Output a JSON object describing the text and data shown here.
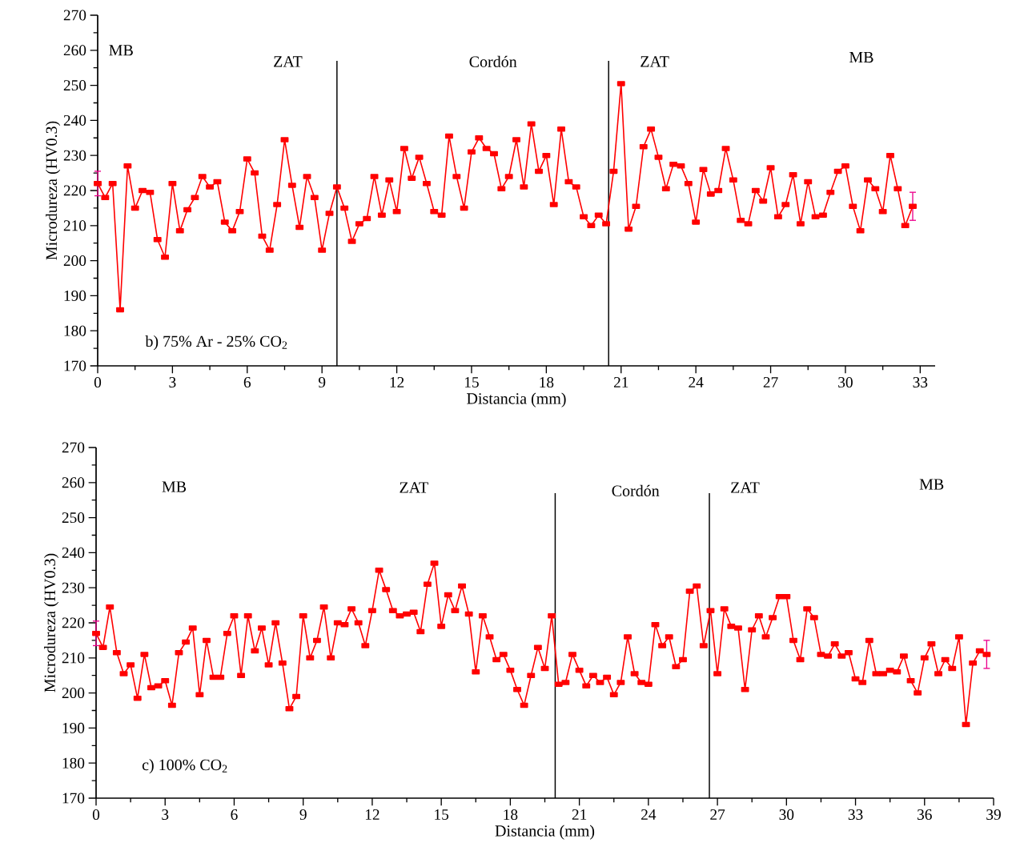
{
  "chart_data": [
    {
      "type": "line",
      "xlabel": "Distancia (mm)",
      "ylabel": "Microdureza (HV0.3)",
      "color": "#ff0000",
      "marker": "square",
      "line_style": "solid",
      "xlim": [
        0,
        33.6
      ],
      "ylim": [
        170,
        270
      ],
      "xticks": [
        0,
        3,
        6,
        9,
        12,
        15,
        18,
        21,
        24,
        27,
        30,
        33
      ],
      "yticks": [
        170,
        180,
        190,
        200,
        210,
        220,
        230,
        240,
        250,
        260,
        270
      ],
      "x": [
        0,
        0.3,
        0.6,
        0.9,
        1.2,
        1.5,
        1.8,
        2.1,
        2.4,
        2.7,
        3.0,
        3.3,
        3.6,
        3.9,
        4.2,
        4.5,
        4.8,
        5.1,
        5.4,
        5.7,
        6.0,
        6.3,
        6.6,
        6.9,
        7.2,
        7.5,
        7.8,
        8.1,
        8.4,
        8.7,
        9.0,
        9.3,
        9.6,
        9.9,
        10.2,
        10.5,
        10.8,
        11.1,
        11.4,
        11.7,
        12.0,
        12.3,
        12.6,
        12.9,
        13.2,
        13.5,
        13.8,
        14.1,
        14.4,
        14.7,
        15.0,
        15.3,
        15.6,
        15.9,
        16.2,
        16.5,
        16.8,
        17.1,
        17.4,
        17.7,
        18.0,
        18.3,
        18.6,
        18.9,
        19.2,
        19.5,
        19.8,
        20.1,
        20.4,
        20.7,
        21.0,
        21.3,
        21.6,
        21.9,
        22.2,
        22.5,
        22.8,
        23.1,
        23.4,
        23.7,
        24.0,
        24.3,
        24.6,
        24.9,
        25.2,
        25.5,
        25.8,
        26.1,
        26.4,
        26.7,
        27.0,
        27.3,
        27.6,
        27.9,
        28.2,
        28.5,
        28.8,
        29.1,
        29.4,
        29.7,
        30.0,
        30.3,
        30.6,
        30.9,
        31.2,
        31.5,
        31.8,
        32.1,
        32.4,
        32.7
      ],
      "values": [
        222,
        218,
        222,
        186,
        227,
        215,
        220,
        219.5,
        206,
        201,
        222,
        208.5,
        214.5,
        218,
        224,
        221,
        222.5,
        211,
        208.5,
        214,
        229,
        225,
        207,
        203,
        216,
        234.5,
        221.5,
        209.5,
        224,
        218,
        203,
        213.5,
        221,
        215,
        205.5,
        210.5,
        212,
        224,
        213,
        223,
        214,
        232,
        223.5,
        229.5,
        222,
        214,
        213,
        235.5,
        224,
        215,
        231,
        235,
        232,
        230.5,
        220.5,
        224,
        234.5,
        221,
        239,
        225.5,
        230,
        216,
        237.5,
        222.5,
        221,
        212.5,
        210,
        213,
        210.5,
        225.5,
        250.5,
        209,
        215.5,
        232.5,
        237.5,
        229.5,
        220.5,
        227.5,
        227,
        222,
        211,
        226,
        219,
        220,
        232,
        223,
        211.5,
        210.5,
        220,
        217,
        226.5,
        212.5,
        216,
        224.5,
        210.5,
        222.5,
        212.5,
        213,
        219.5,
        225.5,
        227,
        215.5,
        208.5,
        223,
        220.5,
        214,
        230,
        220.5,
        210,
        215.5
      ],
      "errors": [
        3.5,
        null,
        null,
        null,
        null,
        null,
        null,
        null,
        null,
        null,
        null,
        null,
        null,
        null,
        null,
        null,
        null,
        null,
        null,
        null,
        null,
        null,
        null,
        null,
        null,
        null,
        null,
        null,
        null,
        null,
        null,
        null,
        null,
        null,
        null,
        null,
        null,
        null,
        null,
        null,
        null,
        null,
        null,
        null,
        null,
        null,
        null,
        null,
        null,
        null,
        null,
        null,
        null,
        null,
        null,
        null,
        null,
        null,
        null,
        null,
        null,
        null,
        null,
        null,
        null,
        null,
        null,
        null,
        null,
        null,
        null,
        null,
        null,
        null,
        null,
        null,
        null,
        null,
        null,
        null,
        null,
        null,
        null,
        null,
        null,
        null,
        null,
        null,
        null,
        null,
        null,
        null,
        null,
        null,
        null,
        null,
        null,
        null,
        null,
        null,
        null,
        null,
        null,
        null,
        null,
        null,
        null,
        null,
        null,
        4
      ],
      "ref_lines": [
        {
          "axis": "x",
          "value": 9.6
        },
        {
          "axis": "x",
          "value": 20.5
        }
      ],
      "annotations": [
        "MB",
        "ZAT",
        "Cordón",
        "ZAT",
        "MB",
        "b) 75% Ar - 25% CO$_{2}$"
      ]
    },
    {
      "type": "line",
      "xlabel": "Distancia (mm)",
      "ylabel": "Microdureza (HV0.3)",
      "color": "#ff0000",
      "marker": "square",
      "line_style": "solid",
      "xlim": [
        0,
        39
      ],
      "ylim": [
        170,
        270
      ],
      "xticks": [
        0,
        3,
        6,
        9,
        12,
        15,
        18,
        21,
        24,
        27,
        30,
        33,
        36,
        39
      ],
      "yticks": [
        170,
        180,
        190,
        200,
        210,
        220,
        230,
        240,
        250,
        260,
        270
      ],
      "x": [
        0,
        0.3,
        0.6,
        0.9,
        1.2,
        1.5,
        1.8,
        2.1,
        2.4,
        2.7,
        3.0,
        3.3,
        3.6,
        3.9,
        4.2,
        4.5,
        4.8,
        5.1,
        5.4,
        5.7,
        6.0,
        6.3,
        6.6,
        6.9,
        7.2,
        7.5,
        7.8,
        8.1,
        8.4,
        8.7,
        9.0,
        9.3,
        9.6,
        9.9,
        10.2,
        10.5,
        10.8,
        11.1,
        11.4,
        11.7,
        12.0,
        12.3,
        12.6,
        12.9,
        13.2,
        13.5,
        13.8,
        14.1,
        14.4,
        14.7,
        15.0,
        15.3,
        15.6,
        15.9,
        16.2,
        16.5,
        16.8,
        17.1,
        17.4,
        17.7,
        18.0,
        18.3,
        18.6,
        18.9,
        19.2,
        19.5,
        19.8,
        20.1,
        20.4,
        20.7,
        21.0,
        21.3,
        21.6,
        21.9,
        22.2,
        22.5,
        22.8,
        23.1,
        23.4,
        23.7,
        24.0,
        24.3,
        24.6,
        24.9,
        25.2,
        25.5,
        25.8,
        26.1,
        26.4,
        26.7,
        27.0,
        27.3,
        27.6,
        27.9,
        28.2,
        28.5,
        28.8,
        29.1,
        29.4,
        29.7,
        30.0,
        30.3,
        30.6,
        30.9,
        31.2,
        31.5,
        31.8,
        32.1,
        32.4,
        32.7,
        33.0,
        33.3,
        33.6,
        33.9,
        34.2,
        34.5,
        34.8,
        35.1,
        35.4,
        35.7,
        36.0,
        36.3,
        36.6,
        36.9,
        37.2,
        37.5,
        37.8,
        38.1,
        38.4,
        38.7
      ],
      "values": [
        217,
        213,
        224.5,
        211.5,
        205.5,
        208,
        198.5,
        211,
        201.5,
        202,
        203.5,
        196.5,
        211.5,
        214.5,
        218.5,
        199.5,
        215,
        204.5,
        204.5,
        217,
        222,
        205,
        222,
        212,
        218.5,
        208,
        220,
        208.5,
        195.5,
        199,
        222,
        210,
        215,
        224.5,
        210,
        220,
        219.5,
        224,
        220,
        213.5,
        223.5,
        235,
        229.5,
        223.5,
        222,
        222.5,
        223,
        217.5,
        231,
        237,
        219,
        228,
        223.5,
        230.5,
        222.5,
        206,
        222,
        216,
        209.5,
        211,
        206.5,
        201,
        196.5,
        205,
        213,
        207,
        222,
        202.5,
        203,
        211,
        206.5,
        202,
        205,
        203,
        204.5,
        199.5,
        203,
        216,
        205.5,
        203,
        202.5,
        219.5,
        213.5,
        216,
        207.5,
        209.5,
        229,
        230.5,
        213.5,
        223.5,
        205.5,
        224,
        219,
        218.5,
        201,
        218,
        222,
        216,
        221.5,
        227.5,
        227.5,
        215,
        209.5,
        224,
        221.5,
        211,
        210.5,
        214,
        210.5,
        211.5,
        204,
        203,
        215,
        205.5,
        205.5,
        206.5,
        206,
        210.5,
        203.5,
        200,
        210,
        214,
        205.5,
        209.5,
        207,
        216,
        191,
        208.5,
        212,
        211
      ],
      "errors": [
        3.5,
        null,
        null,
        null,
        null,
        null,
        null,
        null,
        null,
        null,
        null,
        null,
        null,
        null,
        null,
        null,
        null,
        null,
        null,
        null,
        null,
        null,
        null,
        null,
        null,
        null,
        null,
        null,
        null,
        null,
        null,
        null,
        null,
        null,
        null,
        null,
        null,
        null,
        null,
        null,
        null,
        null,
        null,
        null,
        null,
        null,
        null,
        null,
        null,
        null,
        null,
        null,
        null,
        null,
        null,
        null,
        null,
        null,
        null,
        null,
        null,
        null,
        null,
        null,
        null,
        null,
        null,
        null,
        null,
        null,
        null,
        null,
        null,
        null,
        null,
        null,
        null,
        null,
        null,
        null,
        null,
        null,
        null,
        null,
        null,
        null,
        null,
        null,
        null,
        null,
        null,
        null,
        null,
        null,
        null,
        null,
        null,
        null,
        null,
        null,
        null,
        null,
        null,
        null,
        null,
        null,
        null,
        null,
        null,
        null,
        null,
        null,
        null,
        null,
        null,
        null,
        null,
        null,
        null,
        null,
        null,
        null,
        null,
        null,
        null,
        null,
        null,
        null,
        null,
        4
      ],
      "ref_lines": [
        {
          "axis": "x",
          "value": 19.95
        },
        {
          "axis": "x",
          "value": 26.65
        }
      ],
      "annotations": [
        "MB",
        "ZAT",
        "Cordón",
        "ZAT",
        "MB",
        "c) 100% CO$_{2}$"
      ]
    }
  ]
}
